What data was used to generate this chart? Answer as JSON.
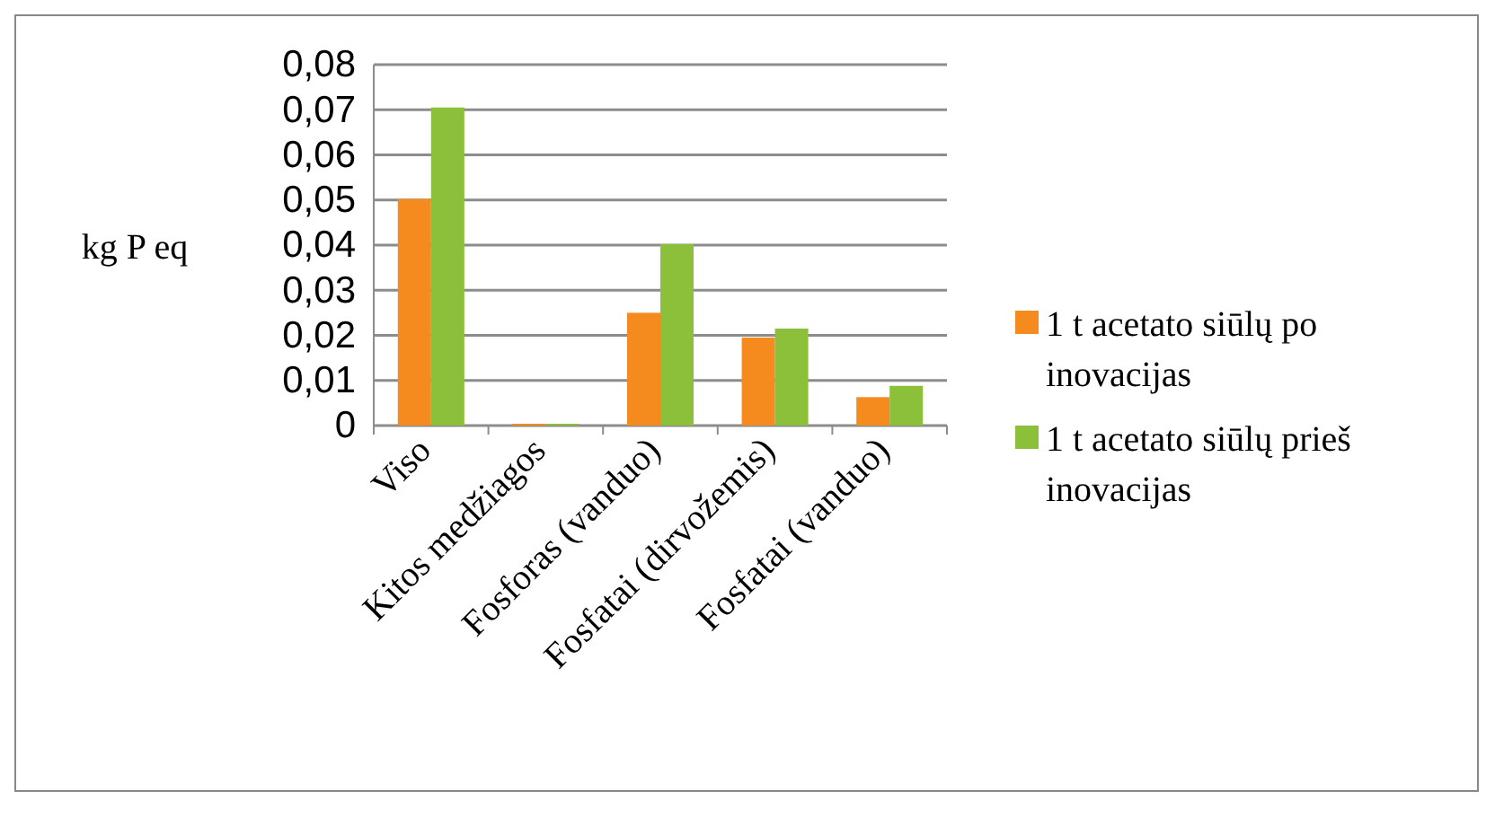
{
  "chart_data": {
    "type": "bar",
    "ylabel": "kg P eq",
    "categories": [
      "Viso",
      "Kitos medžiagos",
      "Fosforas (vanduo)",
      "Fosfatai (dirvožemis)",
      "Fosfatai (vanduo)"
    ],
    "series": [
      {
        "name": "1 t acetato siūlų po inovacijas",
        "color": "#f58a1f",
        "values": [
          0.0502,
          0.0004,
          0.025,
          0.0195,
          0.0063
        ]
      },
      {
        "name": "1 t acetato siūlų prieš inovacijas",
        "color": "#8cbf3a",
        "values": [
          0.0705,
          0.0004,
          0.0402,
          0.0215,
          0.0088
        ]
      }
    ],
    "ylim": [
      0,
      0.08
    ],
    "yticks": [
      {
        "value": 0,
        "label": "0"
      },
      {
        "value": 0.01,
        "label": "0,01"
      },
      {
        "value": 0.02,
        "label": "0,02"
      },
      {
        "value": 0.03,
        "label": "0,03"
      },
      {
        "value": 0.04,
        "label": "0,04"
      },
      {
        "value": 0.05,
        "label": "0,05"
      },
      {
        "value": 0.06,
        "label": "0,06"
      },
      {
        "value": 0.07,
        "label": "0,07"
      },
      {
        "value": 0.08,
        "label": "0,08"
      }
    ],
    "grid": "y",
    "legend": "right"
  }
}
